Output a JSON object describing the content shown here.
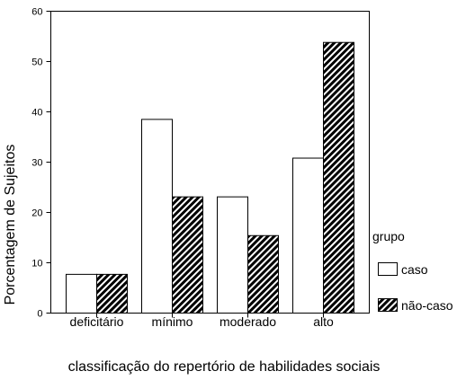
{
  "chart_data": {
    "type": "bar",
    "xlabel": "classificação do repertório de habilidades sociais",
    "ylabel": "Porcentagem de Sujeitos",
    "ylim": [
      0,
      60
    ],
    "yticks": [
      "0",
      "10",
      "20",
      "30",
      "40",
      "50",
      "60"
    ],
    "categories": [
      "deficitário",
      "mínimo",
      "moderado",
      "alto"
    ],
    "series": [
      {
        "name": "caso",
        "values": [
          7.7,
          38.5,
          23.1,
          30.8
        ],
        "fill": "#ffffff",
        "pattern": "none"
      },
      {
        "name": "não-caso",
        "values": [
          7.7,
          23.1,
          15.4,
          53.8
        ],
        "fill": "#000000",
        "pattern": "diagonal-hatch"
      }
    ],
    "legend": {
      "title": "grupo",
      "placement": "right"
    },
    "grid": false
  }
}
